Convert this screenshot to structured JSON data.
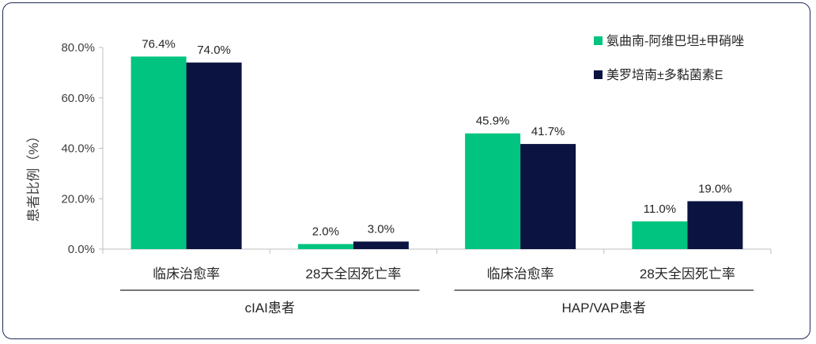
{
  "chart_data": {
    "type": "bar",
    "ylabel": "患者比例（%）",
    "ylim": [
      0,
      80
    ],
    "yticks": [
      "0.0%",
      "20.0%",
      "40.0%",
      "60.0%",
      "80.0%"
    ],
    "ytick_values": [
      0,
      20,
      40,
      60,
      80
    ],
    "grid": false,
    "legend_position": "top-right",
    "categories": [
      "临床治愈率",
      "28天全因死亡率",
      "临床治愈率",
      "28天全因死亡率"
    ],
    "groups": [
      {
        "label": "cIAI患者",
        "categories": [
          0,
          1
        ]
      },
      {
        "label": "HAP/VAP患者",
        "categories": [
          2,
          3
        ]
      }
    ],
    "series": [
      {
        "name": "氨曲南-阿维巴坦±甲硝唑",
        "color": "#00c47f",
        "values": [
          76.4,
          2.0,
          45.9,
          11.0
        ],
        "labels": [
          "76.4%",
          "2.0%",
          "45.9%",
          "11.0%"
        ]
      },
      {
        "name": "美罗培南±多黏菌素E",
        "color": "#0b1340",
        "values": [
          74.0,
          3.0,
          41.7,
          19.0
        ],
        "labels": [
          "74.0%",
          "3.0%",
          "41.7%",
          "19.0%"
        ]
      }
    ]
  }
}
